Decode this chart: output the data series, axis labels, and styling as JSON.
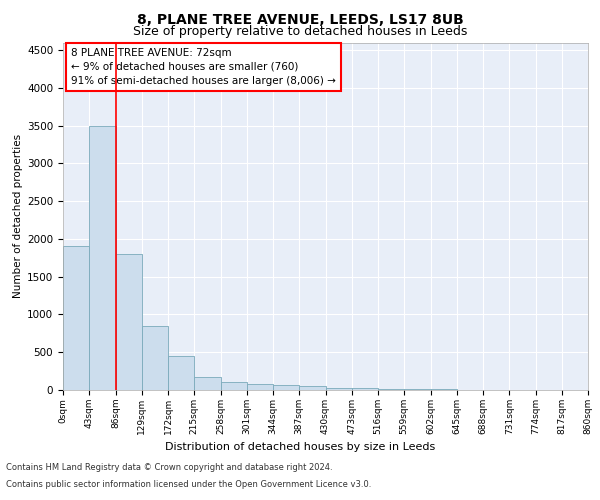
{
  "title": "8, PLANE TREE AVENUE, LEEDS, LS17 8UB",
  "subtitle": "Size of property relative to detached houses in Leeds",
  "xlabel": "Distribution of detached houses by size in Leeds",
  "ylabel": "Number of detached properties",
  "bar_values": [
    1900,
    3500,
    1800,
    850,
    450,
    175,
    100,
    75,
    60,
    50,
    30,
    20,
    15,
    10,
    8,
    5,
    3,
    2,
    1,
    1
  ],
  "bin_edges": [
    0,
    43,
    86,
    129,
    172,
    215,
    258,
    301,
    344,
    387,
    430,
    473,
    516,
    559,
    602,
    645,
    688,
    731,
    774,
    817,
    860
  ],
  "bar_color": "#ccdded",
  "bar_edge_color": "#7aaabb",
  "bar_linewidth": 0.6,
  "red_line_x": 86,
  "annotation_text": "8 PLANE TREE AVENUE: 72sqm\n← 9% of detached houses are smaller (760)\n91% of semi-detached houses are larger (8,006) →",
  "annotation_box_color": "white",
  "annotation_box_edge": "red",
  "annotation_fontsize": 7.5,
  "ylim": [
    0,
    4600
  ],
  "yticks": [
    0,
    500,
    1000,
    1500,
    2000,
    2500,
    3000,
    3500,
    4000,
    4500
  ],
  "background_color": "#e8eef8",
  "grid_color": "white",
  "title_fontsize": 10,
  "subtitle_fontsize": 9,
  "xlabel_fontsize": 8,
  "ylabel_fontsize": 7.5,
  "footer_line1": "Contains HM Land Registry data © Crown copyright and database right 2024.",
  "footer_line2": "Contains public sector information licensed under the Open Government Licence v3.0."
}
